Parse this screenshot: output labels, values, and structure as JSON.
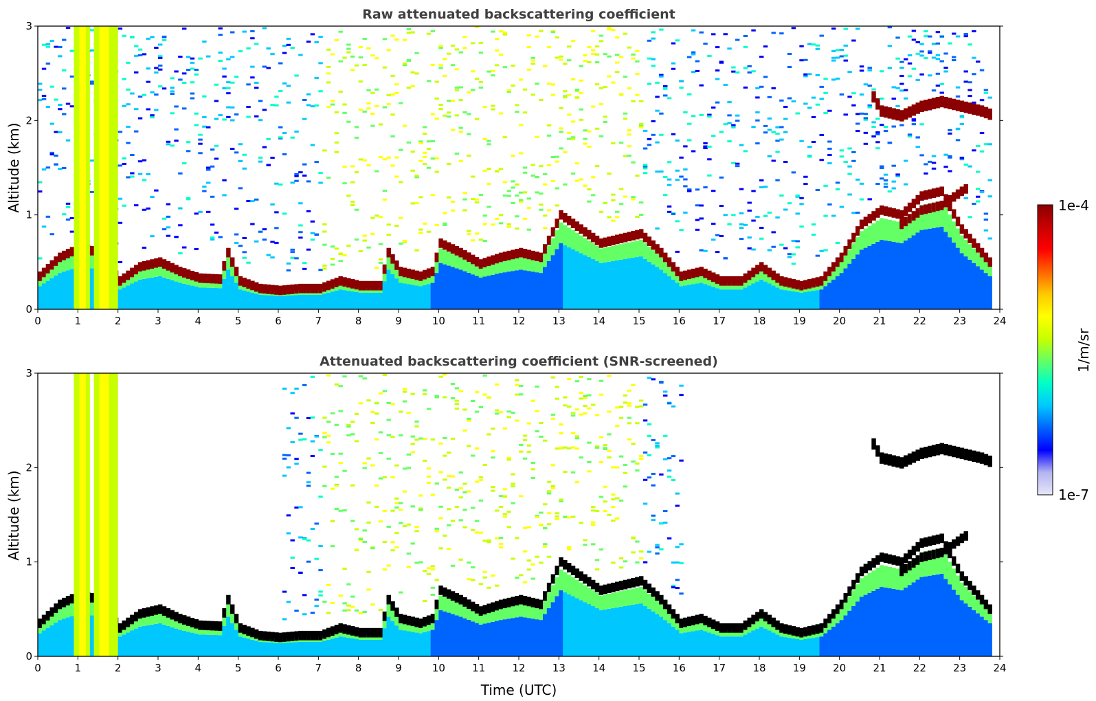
{
  "figure": {
    "xlabel": "Time (UTC)",
    "colorbar": {
      "label": "1/m/sr",
      "max_label": "1e-4",
      "min_label": "1e-7",
      "vmin": 1e-07,
      "vmax": 0.0001,
      "scale": "log",
      "colormap": [
        "#e6e6fa",
        "#b4b4f0",
        "#0000ff",
        "#0064ff",
        "#00c8ff",
        "#00ffc8",
        "#64ff64",
        "#c8ff00",
        "#ffff00",
        "#ffc800",
        "#ff6400",
        "#ff0000",
        "#c80000",
        "#8b0000"
      ]
    }
  },
  "chart_data": [
    {
      "type": "heatmap",
      "title": "Raw attenuated backscattering coefficient",
      "xlabel": "",
      "ylabel": "Altitude (km)",
      "xlim": [
        0,
        24
      ],
      "ylim": [
        0,
        3
      ],
      "x_ticks": [
        "0",
        "1",
        "2",
        "3",
        "4",
        "5",
        "6",
        "7",
        "8",
        "9",
        "10",
        "11",
        "12",
        "13",
        "14",
        "15",
        "16",
        "17",
        "18",
        "19",
        "20",
        "21",
        "22",
        "23",
        "24"
      ],
      "y_ticks": [
        "0",
        "1",
        "2",
        "3"
      ],
      "grid": false,
      "features": {
        "boundary_layer_top_km": {
          "time_utc": [
            0.0,
            0.5,
            1.0,
            1.5,
            2.0,
            2.5,
            3.0,
            3.5,
            4.0,
            4.5,
            4.7,
            5.0,
            5.5,
            6.0,
            6.5,
            7.0,
            7.5,
            8.0,
            8.5,
            8.7,
            9.0,
            9.5,
            9.8,
            10.0,
            10.5,
            11.0,
            11.5,
            12.0,
            12.5,
            13.0,
            13.5,
            14.0,
            14.5,
            15.0,
            15.5,
            16.0,
            16.5,
            17.0,
            17.5,
            18.0,
            18.5,
            19.0,
            19.5,
            20.0,
            20.5,
            21.0,
            21.5,
            22.0,
            22.5,
            23.0,
            23.5,
            23.8
          ],
          "altitude_km": [
            0.35,
            0.55,
            0.65,
            0.6,
            0.3,
            0.45,
            0.5,
            0.4,
            0.33,
            0.32,
            0.6,
            0.3,
            0.22,
            0.2,
            0.22,
            0.22,
            0.3,
            0.25,
            0.25,
            0.6,
            0.4,
            0.35,
            0.4,
            0.7,
            0.6,
            0.48,
            0.55,
            0.6,
            0.55,
            1.0,
            0.85,
            0.7,
            0.75,
            0.8,
            0.6,
            0.35,
            0.4,
            0.3,
            0.3,
            0.45,
            0.3,
            0.25,
            0.3,
            0.55,
            0.9,
            1.05,
            1.0,
            1.2,
            1.25,
            0.85,
            0.6,
            0.45
          ]
        },
        "tall_plumes": [
          {
            "t0": 0.9,
            "t1": 1.3,
            "top_km": 3.0,
            "note": ""
          },
          {
            "t0": 1.4,
            "t1": 2.0,
            "top_km": 3.0,
            "note": ""
          }
        ],
        "elevated_cloud_layer": {
          "time_utc": [
            20.8,
            21.0,
            21.5,
            22.0,
            22.5,
            23.0,
            23.5,
            23.8
          ],
          "altitude_km": [
            2.25,
            2.1,
            2.05,
            2.15,
            2.2,
            2.15,
            2.1,
            2.05
          ]
        },
        "residual_layer": {
          "time_utc": [
            21.5,
            22.0,
            22.5,
            23.0,
            23.2
          ],
          "altitude_km": [
            0.9,
            1.05,
            1.1,
            1.25,
            1.3
          ]
        }
      }
    },
    {
      "type": "heatmap",
      "title": "Attenuated backscattering coefficient (SNR-screened)",
      "xlabel": "Time (UTC)",
      "ylabel": "Altitude (km)",
      "xlim": [
        0,
        24
      ],
      "ylim": [
        0,
        3
      ],
      "x_ticks": [
        "0",
        "1",
        "2",
        "3",
        "4",
        "5",
        "6",
        "7",
        "8",
        "9",
        "10",
        "11",
        "12",
        "13",
        "14",
        "15",
        "16",
        "17",
        "18",
        "19",
        "20",
        "21",
        "22",
        "23",
        "24"
      ],
      "y_ticks": [
        "0",
        "1",
        "2",
        "3"
      ],
      "grid": false,
      "masked_color": "#000000"
    }
  ]
}
